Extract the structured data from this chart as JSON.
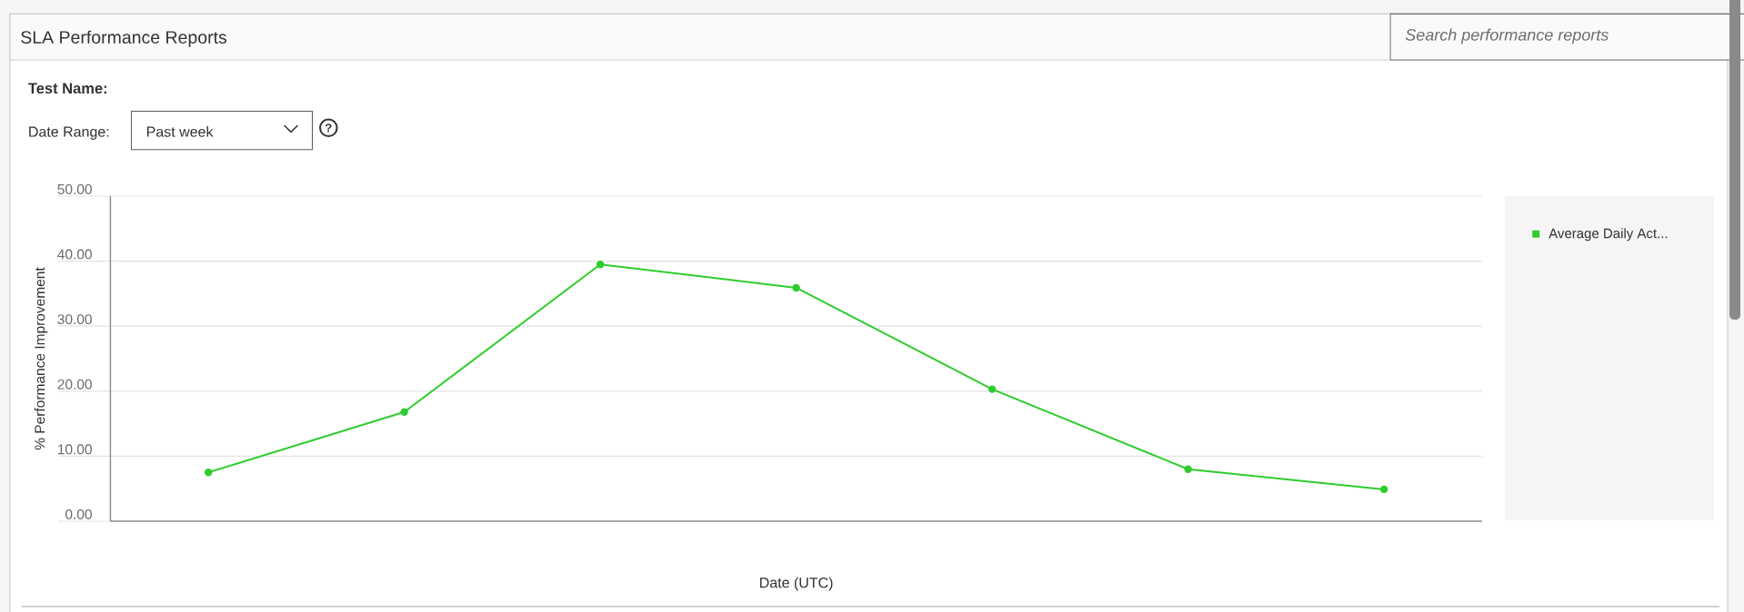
{
  "chart_data": {
    "type": "line",
    "title": "SLA Performance Reports",
    "annotations": [
      "Test Name:",
      "Date Range:",
      "Past week",
      "?",
      "Search performance reports"
    ],
    "xlabel": "Date (UTC)",
    "ylabel": "% Performance Improvement",
    "categories": [
      null,
      null,
      null,
      null,
      null,
      null,
      null
    ],
    "series": [
      {
        "name": "Average Daily Act...",
        "color": "#2ecc2e",
        "values": [
          7.5,
          16.8,
          39.5,
          35.9,
          20.3,
          8.0,
          4.9
        ]
      }
    ],
    "ylim": [
      0,
      50
    ],
    "yticks": [
      {
        "value": 0,
        "label": "0.00"
      },
      {
        "value": 10,
        "label": "10.00"
      },
      {
        "value": 20,
        "label": "20.00"
      },
      {
        "value": 30,
        "label": "30.00"
      },
      {
        "value": 40,
        "label": "40.00"
      },
      {
        "value": 50,
        "label": "50.00"
      }
    ],
    "grid": "y",
    "legend": "right",
    "marker": "circle",
    "line_style": "solid"
  }
}
